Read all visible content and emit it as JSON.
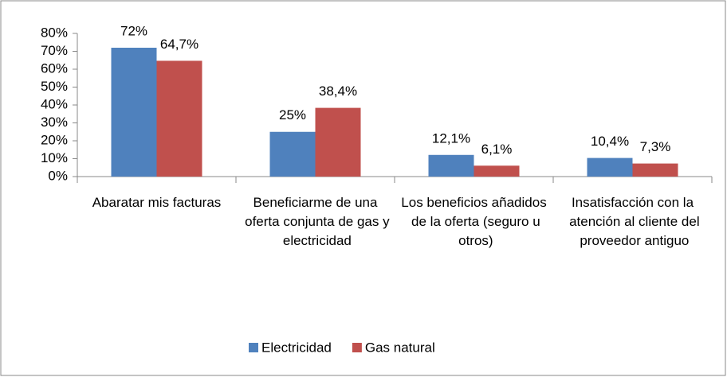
{
  "chart_data": {
    "type": "bar",
    "categories": [
      "Abaratar mis facturas",
      "Beneficiarme de una oferta conjunta de gas y electricidad",
      "Los beneficios añadidos de la oferta (seguro u otros)",
      "Insatisfacción con la atención al cliente del proveedor antiguo"
    ],
    "series": [
      {
        "name": "Electricidad",
        "color": "#4f81bd",
        "values": [
          72,
          25,
          12.1,
          10.4
        ],
        "value_labels": [
          "72%",
          "25%",
          "12,1%",
          "10,4%"
        ]
      },
      {
        "name": "Gas natural",
        "color": "#c0504d",
        "values": [
          64.7,
          38.4,
          6.1,
          7.3
        ],
        "value_labels": [
          "64,7%",
          "38,4%",
          "6,1%",
          "7,3%"
        ]
      }
    ],
    "ylim": [
      0,
      80
    ],
    "yticks": [
      {
        "value": 0,
        "label": "0%"
      },
      {
        "value": 10,
        "label": "10%"
      },
      {
        "value": 20,
        "label": "20%"
      },
      {
        "value": 30,
        "label": "30%"
      },
      {
        "value": 40,
        "label": "40%"
      },
      {
        "value": 50,
        "label": "50%"
      },
      {
        "value": 60,
        "label": "60%"
      },
      {
        "value": 70,
        "label": "70%"
      },
      {
        "value": 80,
        "label": "80%"
      }
    ],
    "legend": "bottom"
  }
}
